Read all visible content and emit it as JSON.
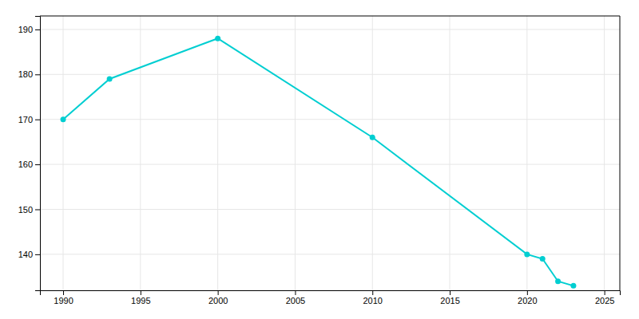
{
  "chart_data": {
    "type": "line",
    "x": [
      1990,
      1993,
      2000,
      2010,
      2020,
      2021,
      2022,
      2023
    ],
    "values": [
      170,
      179,
      188,
      166,
      140,
      139,
      134,
      133
    ],
    "color": "#00CED1",
    "marker": "circle",
    "xlim": [
      1988.5,
      2026
    ],
    "ylim": [
      132,
      193
    ],
    "xticks": [
      1990,
      1995,
      2000,
      2005,
      2010,
      2015,
      2020,
      2025
    ],
    "yticks": [
      140,
      150,
      160,
      170,
      180,
      190
    ],
    "grid": true
  }
}
